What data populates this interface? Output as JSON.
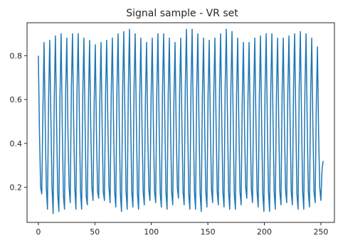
{
  "chart_data": {
    "type": "line",
    "title": "Signal sample - VR set",
    "xlabel": "",
    "ylabel": "",
    "xlim": [
      -10,
      262
    ],
    "ylim": [
      0.04,
      0.95
    ],
    "x_ticks": [
      0,
      50,
      100,
      150,
      200,
      250
    ],
    "y_ticks": [
      0.2,
      0.4,
      0.6,
      0.8
    ],
    "x_tick_labels": [
      "0",
      "50",
      "100",
      "150",
      "200",
      "250"
    ],
    "y_tick_labels": [
      "0.2",
      "0.4",
      "0.6",
      "0.8"
    ],
    "grid": false,
    "legend": "none",
    "line_color": "#1f77b4",
    "series": [
      {
        "x_start": 0,
        "x_step": 1,
        "period": 3.86,
        "values": [
          0.8,
          0.45,
          0.2,
          0.17,
          0.55,
          0.86,
          0.5,
          0.2,
          0.1,
          0.6,
          0.87,
          0.52,
          0.2,
          0.08,
          0.62,
          0.89,
          0.5,
          0.17,
          0.09,
          0.62,
          0.9,
          0.48,
          0.16,
          0.1,
          0.64,
          0.88,
          0.45,
          0.2,
          0.13,
          0.66,
          0.9,
          0.5,
          0.2,
          0.1,
          0.65,
          0.9,
          0.52,
          0.18,
          0.1,
          0.62,
          0.88,
          0.5,
          0.16,
          0.12,
          0.6,
          0.87,
          0.48,
          0.2,
          0.14,
          0.58,
          0.85,
          0.45,
          0.18,
          0.15,
          0.6,
          0.86,
          0.48,
          0.18,
          0.14,
          0.62,
          0.87,
          0.5,
          0.2,
          0.13,
          0.64,
          0.88,
          0.5,
          0.18,
          0.11,
          0.65,
          0.9,
          0.5,
          0.17,
          0.09,
          0.64,
          0.91,
          0.52,
          0.18,
          0.1,
          0.66,
          0.92,
          0.53,
          0.18,
          0.11,
          0.65,
          0.9,
          0.52,
          0.17,
          0.1,
          0.62,
          0.88,
          0.48,
          0.18,
          0.12,
          0.6,
          0.86,
          0.46,
          0.19,
          0.14,
          0.62,
          0.88,
          0.48,
          0.18,
          0.13,
          0.64,
          0.9,
          0.5,
          0.17,
          0.11,
          0.64,
          0.9,
          0.52,
          0.18,
          0.1,
          0.62,
          0.88,
          0.5,
          0.18,
          0.12,
          0.6,
          0.86,
          0.47,
          0.2,
          0.15,
          0.63,
          0.88,
          0.5,
          0.18,
          0.12,
          0.66,
          0.92,
          0.52,
          0.17,
          0.1,
          0.66,
          0.92,
          0.52,
          0.18,
          0.1,
          0.64,
          0.9,
          0.5,
          0.17,
          0.09,
          0.62,
          0.88,
          0.48,
          0.18,
          0.11,
          0.62,
          0.87,
          0.48,
          0.19,
          0.13,
          0.63,
          0.88,
          0.5,
          0.18,
          0.12,
          0.64,
          0.9,
          0.51,
          0.18,
          0.11,
          0.66,
          0.92,
          0.53,
          0.18,
          0.1,
          0.65,
          0.91,
          0.52,
          0.17,
          0.1,
          0.62,
          0.88,
          0.49,
          0.18,
          0.12,
          0.6,
          0.86,
          0.47,
          0.2,
          0.15,
          0.6,
          0.86,
          0.48,
          0.19,
          0.13,
          0.62,
          0.88,
          0.5,
          0.18,
          0.11,
          0.62,
          0.89,
          0.5,
          0.17,
          0.09,
          0.64,
          0.9,
          0.5,
          0.18,
          0.09,
          0.64,
          0.9,
          0.51,
          0.18,
          0.1,
          0.62,
          0.88,
          0.5,
          0.18,
          0.12,
          0.63,
          0.88,
          0.49,
          0.19,
          0.13,
          0.64,
          0.89,
          0.5,
          0.18,
          0.12,
          0.65,
          0.9,
          0.51,
          0.17,
          0.1,
          0.66,
          0.91,
          0.52,
          0.18,
          0.1,
          0.64,
          0.9,
          0.5,
          0.18,
          0.11,
          0.62,
          0.88,
          0.48,
          0.18,
          0.13,
          0.58,
          0.84,
          0.45,
          0.2,
          0.14,
          0.28,
          0.32
        ]
      }
    ]
  }
}
